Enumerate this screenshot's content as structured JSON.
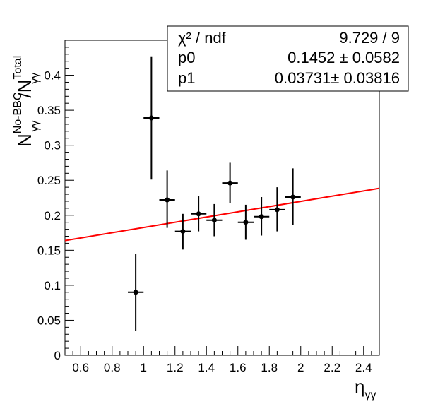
{
  "chart_data": {
    "type": "scatter",
    "xlim": [
      0.5,
      2.5
    ],
    "ylim": [
      0,
      0.45
    ],
    "x_ticks": [
      "0.6",
      "0.8",
      "1",
      "1.2",
      "1.4",
      "1.6",
      "1.8",
      "2",
      "2.2",
      "2.4"
    ],
    "y_ticks": [
      "0",
      "0.05",
      "0.1",
      "0.15",
      "0.2",
      "0.25",
      "0.3",
      "0.35",
      "0.4"
    ],
    "xlabel": "η",
    "xlabel_sub": "γγ",
    "ylabel_main": "N",
    "ylabel_sup1": "No-BBC",
    "ylabel_sub1": "γγ",
    "ylabel_sep": "/N",
    "ylabel_sup2": "Total",
    "ylabel_sub2": "γγ",
    "grid": false,
    "series": [
      {
        "points": [
          {
            "x": 0.95,
            "y": 0.09,
            "xerr": 0.05,
            "ylo": 0.035,
            "yhi": 0.145
          },
          {
            "x": 1.05,
            "y": 0.339,
            "xerr": 0.05,
            "ylo": 0.251,
            "yhi": 0.427
          },
          {
            "x": 1.15,
            "y": 0.222,
            "xerr": 0.05,
            "ylo": 0.182,
            "yhi": 0.264
          },
          {
            "x": 1.25,
            "y": 0.177,
            "xerr": 0.05,
            "ylo": 0.151,
            "yhi": 0.202
          },
          {
            "x": 1.35,
            "y": 0.202,
            "xerr": 0.05,
            "ylo": 0.177,
            "yhi": 0.227
          },
          {
            "x": 1.45,
            "y": 0.193,
            "xerr": 0.05,
            "ylo": 0.17,
            "yhi": 0.216
          },
          {
            "x": 1.55,
            "y": 0.246,
            "xerr": 0.05,
            "ylo": 0.217,
            "yhi": 0.275
          },
          {
            "x": 1.65,
            "y": 0.19,
            "xerr": 0.05,
            "ylo": 0.165,
            "yhi": 0.215
          },
          {
            "x": 1.75,
            "y": 0.198,
            "xerr": 0.05,
            "ylo": 0.171,
            "yhi": 0.226
          },
          {
            "x": 1.85,
            "y": 0.208,
            "xerr": 0.05,
            "ylo": 0.177,
            "yhi": 0.24
          },
          {
            "x": 1.95,
            "y": 0.226,
            "xerr": 0.05,
            "ylo": 0.186,
            "yhi": 0.267
          }
        ],
        "color": "#000000"
      }
    ],
    "fit": {
      "type": "linear",
      "p0": 0.1452,
      "p1": 0.03731,
      "color": "#ff0000"
    },
    "stats_box": {
      "rows": [
        {
          "label": "χ² / ndf",
          "value": "9.729 / 9"
        },
        {
          "label": "p0",
          "value": "0.1452 ± 0.0582"
        },
        {
          "label": "p1",
          "value": "0.03731± 0.03816"
        }
      ]
    }
  }
}
